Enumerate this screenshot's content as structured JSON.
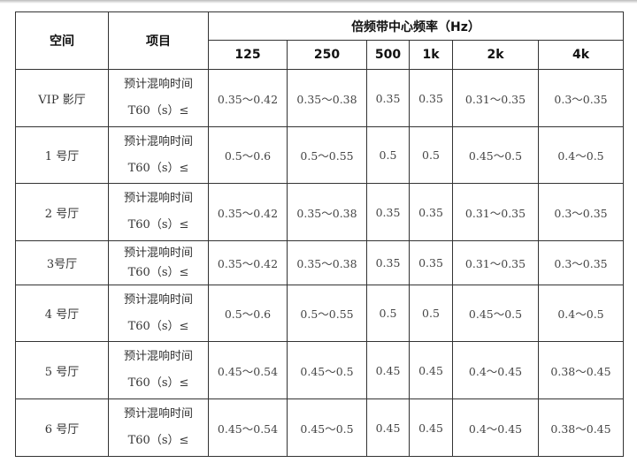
{
  "table": {
    "header": {
      "space": "空间",
      "item": "项目",
      "band_group": "倍频带中心频率（Hz）",
      "bands": [
        "125",
        "250",
        "500",
        "1k",
        "2k",
        "4k"
      ]
    },
    "item_label_line1": "预计混响时间",
    "item_label_line2": "T60（s）≤",
    "rows": [
      {
        "space": "VIP 影厅",
        "values": [
          "0.35～0.42",
          "0.35～0.38",
          "0.35",
          "0.35",
          "0.31～0.35",
          "0.3～0.35"
        ]
      },
      {
        "space": "1 号厅",
        "values": [
          "0.5～0.6",
          "0.5～0.55",
          "0.5",
          "0.5",
          "0.45～0.5",
          "0.4～0.5"
        ]
      },
      {
        "space": "2 号厅",
        "values": [
          "0.35～0.42",
          "0.35～0.38",
          "0.35",
          "0.35",
          "0.31～0.35",
          "0.3～0.35"
        ]
      },
      {
        "space": "3号厅",
        "values": [
          "0.35～0.42",
          "0.35～0.38",
          "0.35",
          "0.35",
          "0.31～0.35",
          "0.3～0.35"
        ]
      },
      {
        "space": "4 号厅",
        "values": [
          "0.5～0.6",
          "0.5～0.55",
          "0.5",
          "0.5",
          "0.45～0.5",
          "0.4～0.5"
        ]
      },
      {
        "space": "5 号厅",
        "values": [
          "0.45～0.54",
          "0.45～0.5",
          "0.45",
          "0.45",
          "0.4～0.45",
          "0.38～0.45"
        ]
      },
      {
        "space": "6 号厅",
        "values": [
          "0.45～0.54",
          "0.45～0.5",
          "0.45",
          "0.45",
          "0.4～0.45",
          "0.38～0.45"
        ]
      }
    ]
  }
}
